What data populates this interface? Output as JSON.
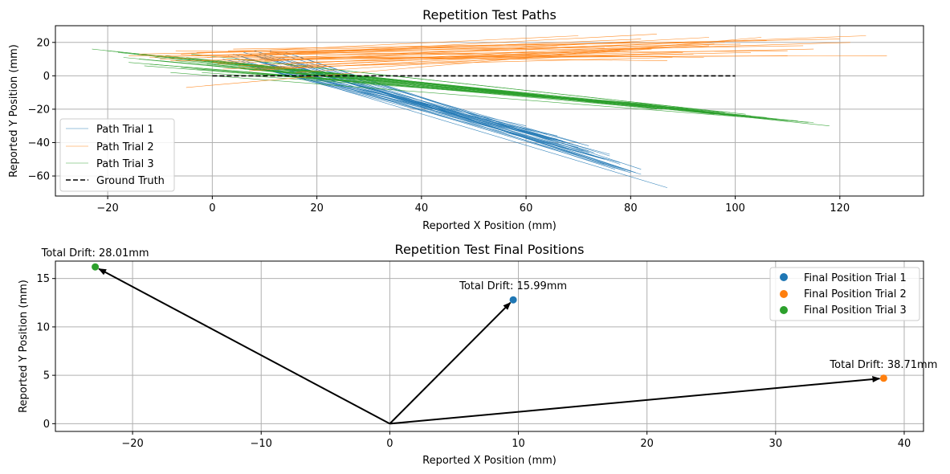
{
  "colors": {
    "trial1": "#1f77b4",
    "trial2": "#ff7f0e",
    "trial3": "#2ca02c",
    "truth": "#000000",
    "grid": "#b0b0b0"
  },
  "chart_data": [
    {
      "type": "line",
      "title": "Repetition Test Paths",
      "xlabel": "Reported X Position (mm)",
      "ylabel": "Reported Y Position (mm)",
      "xlim": [
        -30,
        136
      ],
      "ylim": [
        -72,
        30
      ],
      "xticks": [
        -20,
        0,
        20,
        40,
        60,
        80,
        100,
        120
      ],
      "yticks": [
        -60,
        -40,
        -20,
        0,
        20
      ],
      "grid": true,
      "legend_position": "lower-left",
      "series": [
        {
          "name": "Path Trial 1",
          "color": "#1f77b4",
          "segments": [
            [
              [
                3,
                12
              ],
              [
                87,
                -67
              ]
            ],
            [
              [
                4,
                13
              ],
              [
                82,
                -59
              ]
            ],
            [
              [
                5,
                12
              ],
              [
                80,
                -58
              ]
            ],
            [
              [
                6,
                11
              ],
              [
                76,
                -47
              ]
            ],
            [
              [
                7,
                10
              ],
              [
                75,
                -50
              ]
            ],
            [
              [
                6,
                14
              ],
              [
                72,
                -42
              ]
            ],
            [
              [
                8,
                12
              ],
              [
                72,
                -45
              ]
            ],
            [
              [
                10,
                8
              ],
              [
                70,
                -43
              ]
            ],
            [
              [
                9,
                13
              ],
              [
                77,
                -56
              ]
            ],
            [
              [
                12,
                10
              ],
              [
                80,
                -57
              ]
            ],
            [
              [
                11,
                7
              ],
              [
                73,
                -48
              ]
            ],
            [
              [
                14,
                9
              ],
              [
                78,
                -55
              ]
            ],
            [
              [
                13,
                6
              ],
              [
                72,
                -46
              ]
            ],
            [
              [
                15,
                5
              ],
              [
                70,
                -42
              ]
            ],
            [
              [
                16,
                8
              ],
              [
                75,
                -53
              ]
            ],
            [
              [
                17,
                4
              ],
              [
                68,
                -40
              ]
            ],
            [
              [
                5,
                9
              ],
              [
                66,
                -36
              ]
            ],
            [
              [
                7,
                6
              ],
              [
                69,
                -41
              ]
            ],
            [
              [
                9,
                5
              ],
              [
                71,
                -45
              ]
            ],
            [
              [
                10,
                11
              ],
              [
                74,
                -49
              ]
            ],
            [
              [
                12,
                3
              ],
              [
                66,
                -38
              ]
            ],
            [
              [
                18,
                7
              ],
              [
                79,
                -57
              ]
            ],
            [
              [
                19,
                2
              ],
              [
                67,
                -39
              ]
            ],
            [
              [
                8,
                15
              ],
              [
                73,
                -46
              ]
            ],
            [
              [
                20,
                6
              ],
              [
                81,
                -58
              ]
            ],
            [
              [
                6,
                7
              ],
              [
                78,
                -52
              ]
            ],
            [
              [
                11,
                15
              ],
              [
                76,
                -48
              ]
            ],
            [
              [
                4,
                8
              ],
              [
                64,
                -35
              ]
            ],
            [
              [
                14,
                14
              ],
              [
                78,
                -53
              ]
            ],
            [
              [
                16,
                12
              ],
              [
                82,
                -56
              ]
            ],
            [
              [
                2,
                10
              ],
              [
                60,
                -30
              ]
            ],
            [
              [
                13,
                11
              ],
              [
                70,
                -40
              ]
            ]
          ]
        },
        {
          "name": "Path Trial 2",
          "color": "#ff7f0e",
          "segments": [
            [
              [
                -5,
                -7
              ],
              [
                105,
                23
              ]
            ],
            [
              [
                -2,
                9
              ],
              [
                125,
                24
              ]
            ],
            [
              [
                2,
                11
              ],
              [
                129,
                12
              ]
            ],
            [
              [
                -16,
                12
              ],
              [
                110,
                15
              ]
            ],
            [
              [
                0,
                8
              ],
              [
                100,
                21
              ]
            ],
            [
              [
                5,
                6
              ],
              [
                95,
                18
              ]
            ],
            [
              [
                -10,
                10
              ],
              [
                80,
                20
              ]
            ],
            [
              [
                3,
                15
              ],
              [
                120,
                22
              ]
            ],
            [
              [
                8,
                4
              ],
              [
                90,
                14
              ]
            ],
            [
              [
                -6,
                13
              ],
              [
                70,
                24
              ]
            ],
            [
              [
                10,
                9
              ],
              [
                115,
                16
              ]
            ],
            [
              [
                -12,
                11
              ],
              [
                60,
                19
              ]
            ],
            [
              [
                6,
                12
              ],
              [
                85,
                25
              ]
            ],
            [
              [
                12,
                5
              ],
              [
                88,
                11
              ]
            ],
            [
              [
                -3,
                14
              ],
              [
                75,
                17
              ]
            ],
            [
              [
                14,
                7
              ],
              [
                98,
                20
              ]
            ],
            [
              [
                -8,
                9
              ],
              [
                92,
                13
              ]
            ],
            [
              [
                4,
                16
              ],
              [
                106,
                21
              ]
            ],
            [
              [
                16,
                2
              ],
              [
                84,
                16
              ]
            ],
            [
              [
                -14,
                13
              ],
              [
                66,
                18
              ]
            ],
            [
              [
                9,
                10
              ],
              [
                110,
                12
              ]
            ],
            [
              [
                1,
                7
              ],
              [
                95,
                23
              ]
            ],
            [
              [
                11,
                14
              ],
              [
                101,
                19
              ]
            ],
            [
              [
                -4,
                12
              ],
              [
                87,
                9
              ]
            ],
            [
              [
                7,
                3
              ],
              [
                78,
                15
              ]
            ],
            [
              [
                13,
                10
              ],
              [
                122,
                20
              ]
            ],
            [
              [
                -1,
                11
              ],
              [
                82,
                22
              ]
            ],
            [
              [
                15,
                8
              ],
              [
                103,
                14
              ]
            ],
            [
              [
                2,
                4
              ],
              [
                89,
                17
              ]
            ],
            [
              [
                -7,
                15
              ],
              [
                94,
                11
              ]
            ],
            [
              [
                18,
                6
              ],
              [
                96,
                19
              ]
            ],
            [
              [
                5,
                13
              ],
              [
                113,
                18
              ]
            ]
          ]
        },
        {
          "name": "Path Trial 3",
          "color": "#2ca02c",
          "segments": [
            [
              [
                -23,
                16
              ],
              [
                118,
                -30
              ]
            ],
            [
              [
                -8,
                2
              ],
              [
                115,
                -28
              ]
            ],
            [
              [
                -15,
                13
              ],
              [
                108,
                -26
              ]
            ],
            [
              [
                -10,
                9
              ],
              [
                100,
                -24
              ]
            ],
            [
              [
                -5,
                11
              ],
              [
                95,
                -22
              ]
            ],
            [
              [
                0,
                6
              ],
              [
                90,
                -20
              ]
            ],
            [
              [
                -18,
                14
              ],
              [
                85,
                -20
              ]
            ],
            [
              [
                -12,
                7
              ],
              [
                80,
                -16
              ]
            ],
            [
              [
                -3,
                4
              ],
              [
                82,
                -18
              ]
            ],
            [
              [
                2,
                8
              ],
              [
                92,
                -21
              ]
            ],
            [
              [
                -20,
                15
              ],
              [
                98,
                -22
              ]
            ],
            [
              [
                -6,
                5
              ],
              [
                88,
                -19
              ]
            ],
            [
              [
                4,
                3
              ],
              [
                86,
                -20
              ]
            ],
            [
              [
                -14,
                10
              ],
              [
                104,
                -25
              ]
            ],
            [
              [
                -9,
                12
              ],
              [
                96,
                -23
              ]
            ],
            [
              [
                1,
                9
              ],
              [
                110,
                -27
              ]
            ],
            [
              [
                -2,
                2
              ],
              [
                84,
                -17
              ]
            ],
            [
              [
                6,
                7
              ],
              [
                101,
                -24
              ]
            ],
            [
              [
                -16,
                8
              ],
              [
                93,
                -20
              ]
            ],
            [
              [
                -11,
                11
              ],
              [
                112,
                -27
              ]
            ],
            [
              [
                3,
                5
              ],
              [
                99,
                -22
              ]
            ],
            [
              [
                -7,
                9
              ],
              [
                106,
                -25
              ]
            ],
            [
              [
                8,
                4
              ],
              [
                94,
                -21
              ]
            ],
            [
              [
                -4,
                13
              ],
              [
                102,
                -23
              ]
            ],
            [
              [
                5,
                10
              ],
              [
                90,
                -19
              ]
            ],
            [
              [
                -13,
                6
              ],
              [
                87,
                -18
              ]
            ],
            [
              [
                -1,
                7
              ],
              [
                114,
                -28
              ]
            ],
            [
              [
                7,
                2
              ],
              [
                97,
                -22
              ]
            ],
            [
              [
                10,
                5
              ],
              [
                103,
                -24
              ]
            ],
            [
              [
                -17,
                11
              ],
              [
                91,
                -20
              ]
            ]
          ]
        },
        {
          "name": "Ground Truth",
          "color": "#000000",
          "dashed": true,
          "segments": [
            [
              [
                0,
                0
              ],
              [
                100,
                0
              ]
            ]
          ]
        }
      ]
    },
    {
      "type": "scatter",
      "title": "Repetition Test Final Positions",
      "xlabel": "Reported X Position (mm)",
      "ylabel": "Reported Y Position (mm)",
      "xlim": [
        -26,
        41.5
      ],
      "ylim": [
        -0.8,
        16.8
      ],
      "xticks": [
        -20,
        -10,
        0,
        10,
        20,
        30,
        40
      ],
      "yticks": [
        0,
        5,
        10,
        15
      ],
      "grid": true,
      "legend_position": "upper-right",
      "points": [
        {
          "name": "Final Position Trial 1",
          "x": 9.6,
          "y": 12.8,
          "color": "#1f77b4",
          "label": "Total Drift: 15.99mm"
        },
        {
          "name": "Final Position Trial 2",
          "x": 38.4,
          "y": 4.7,
          "color": "#ff7f0e",
          "label": "Total Drift: 38.71mm"
        },
        {
          "name": "Final Position Trial 3",
          "x": -22.9,
          "y": 16.2,
          "color": "#2ca02c",
          "label": "Total Drift: 28.01mm"
        }
      ]
    }
  ]
}
